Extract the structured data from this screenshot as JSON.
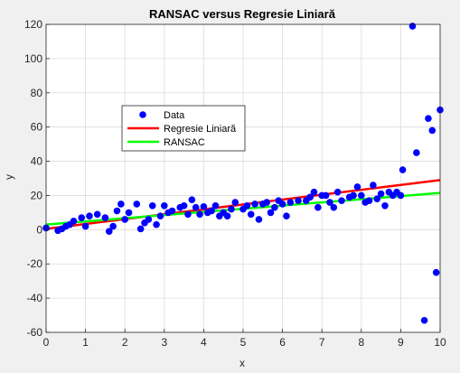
{
  "chart_data": {
    "type": "scatter",
    "title": "RANSAC versus Regresie Liniară",
    "xlabel": "x",
    "ylabel": "y",
    "xlim": [
      0,
      10
    ],
    "ylim": [
      -60,
      120
    ],
    "xticks": [
      0,
      1,
      2,
      3,
      4,
      5,
      6,
      7,
      8,
      9,
      10
    ],
    "yticks": [
      -60,
      -40,
      -20,
      0,
      20,
      40,
      60,
      80,
      100,
      120
    ],
    "grid": true,
    "legend_position": "upper-left-inside",
    "series": [
      {
        "name": "Data",
        "kind": "markers",
        "color": "#0000ff",
        "points": [
          [
            0.0,
            1.0
          ],
          [
            0.3,
            -0.5
          ],
          [
            0.4,
            0.5
          ],
          [
            0.5,
            2.0
          ],
          [
            0.6,
            3.0
          ],
          [
            0.7,
            5.0
          ],
          [
            0.9,
            7.0
          ],
          [
            1.0,
            2.0
          ],
          [
            1.1,
            8.0
          ],
          [
            1.3,
            9.0
          ],
          [
            1.5,
            7.0
          ],
          [
            1.6,
            -1.0
          ],
          [
            1.7,
            2.0
          ],
          [
            1.8,
            11.0
          ],
          [
            1.9,
            15.0
          ],
          [
            2.0,
            6.0
          ],
          [
            2.1,
            10.0
          ],
          [
            2.3,
            15.0
          ],
          [
            2.4,
            0.5
          ],
          [
            2.5,
            4.0
          ],
          [
            2.6,
            6.0
          ],
          [
            2.7,
            14.0
          ],
          [
            2.8,
            3.0
          ],
          [
            2.9,
            8.0
          ],
          [
            3.0,
            14.0
          ],
          [
            3.1,
            10.0
          ],
          [
            3.2,
            11.0
          ],
          [
            3.4,
            13.0
          ],
          [
            3.5,
            14.0
          ],
          [
            3.6,
            9.0
          ],
          [
            3.7,
            17.5
          ],
          [
            3.8,
            13.0
          ],
          [
            3.9,
            9.0
          ],
          [
            4.0,
            13.5
          ],
          [
            4.1,
            10.0
          ],
          [
            4.2,
            11.0
          ],
          [
            4.3,
            14.0
          ],
          [
            4.4,
            8.0
          ],
          [
            4.5,
            10.0
          ],
          [
            4.6,
            8.0
          ],
          [
            4.7,
            12.0
          ],
          [
            4.8,
            16.0
          ],
          [
            5.0,
            12.0
          ],
          [
            5.1,
            14.0
          ],
          [
            5.2,
            9.0
          ],
          [
            5.3,
            15.0
          ],
          [
            5.4,
            6.0
          ],
          [
            5.5,
            15.0
          ],
          [
            5.6,
            16.0
          ],
          [
            5.7,
            10.0
          ],
          [
            5.8,
            13.0
          ],
          [
            5.9,
            17.0
          ],
          [
            6.0,
            15.0
          ],
          [
            6.1,
            8.0
          ],
          [
            6.2,
            16.0
          ],
          [
            6.4,
            17.0
          ],
          [
            6.6,
            17.0
          ],
          [
            6.7,
            19.0
          ],
          [
            6.8,
            22.0
          ],
          [
            6.9,
            13.0
          ],
          [
            7.0,
            20.0
          ],
          [
            7.1,
            20.0
          ],
          [
            7.2,
            16.0
          ],
          [
            7.3,
            13.0
          ],
          [
            7.4,
            22.0
          ],
          [
            7.5,
            17.0
          ],
          [
            7.7,
            19.0
          ],
          [
            7.8,
            20.0
          ],
          [
            7.9,
            25.0
          ],
          [
            8.0,
            20.0
          ],
          [
            8.1,
            16.0
          ],
          [
            8.2,
            17.0
          ],
          [
            8.3,
            26.0
          ],
          [
            8.4,
            18.0
          ],
          [
            8.5,
            21.0
          ],
          [
            8.6,
            14.0
          ],
          [
            8.7,
            22.0
          ],
          [
            8.8,
            20.0
          ],
          [
            8.9,
            22.0
          ],
          [
            9.0,
            20.0
          ],
          [
            9.05,
            35.0
          ],
          [
            9.3,
            119.0
          ],
          [
            9.4,
            45.0
          ],
          [
            9.6,
            -53.0
          ],
          [
            9.7,
            65.0
          ],
          [
            9.8,
            58.0
          ],
          [
            9.9,
            -25.0
          ],
          [
            10.0,
            70.0
          ]
        ]
      },
      {
        "name": "Regresie Liniară",
        "kind": "line",
        "color": "#ff0000",
        "points": [
          [
            0,
            0.5
          ],
          [
            10,
            29.0
          ]
        ]
      },
      {
        "name": "RANSAC",
        "kind": "line",
        "color": "#00ff00",
        "points": [
          [
            0,
            3.0
          ],
          [
            10,
            21.5
          ]
        ]
      }
    ]
  }
}
